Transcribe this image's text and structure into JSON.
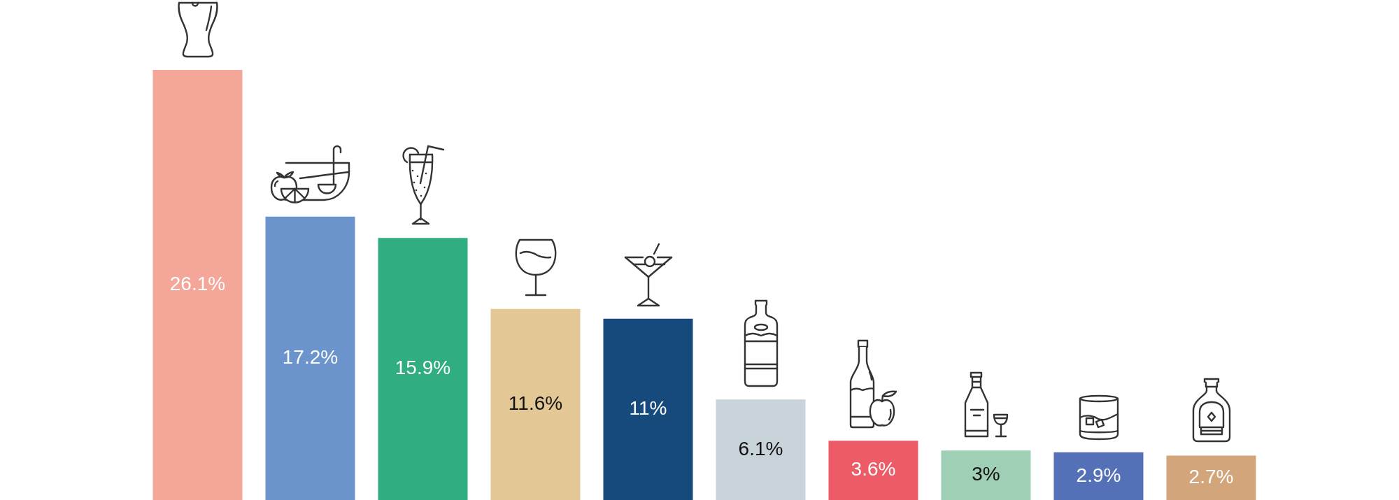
{
  "chart_data": {
    "type": "bar",
    "categories": [
      null,
      null,
      null,
      null,
      null,
      null,
      null,
      null,
      null,
      null
    ],
    "values": [
      26.1,
      17.2,
      15.9,
      11.6,
      11,
      6.1,
      3.6,
      3,
      2.9,
      2.7
    ],
    "value_labels": [
      "26.1%",
      "17.2%",
      "15.9%",
      "11.6%",
      "11%",
      "6.1%",
      "3.6%",
      "3%",
      "2.9%",
      "2.7%"
    ],
    "colors": [
      "#f4a698",
      "#6b94cc",
      "#31ae7f",
      "#e3c795",
      "#174a7c",
      "#c8d3da",
      "#ec5b66",
      "#9fcfb5",
      "#5471b8",
      "#d3a57b"
    ]
  }
}
